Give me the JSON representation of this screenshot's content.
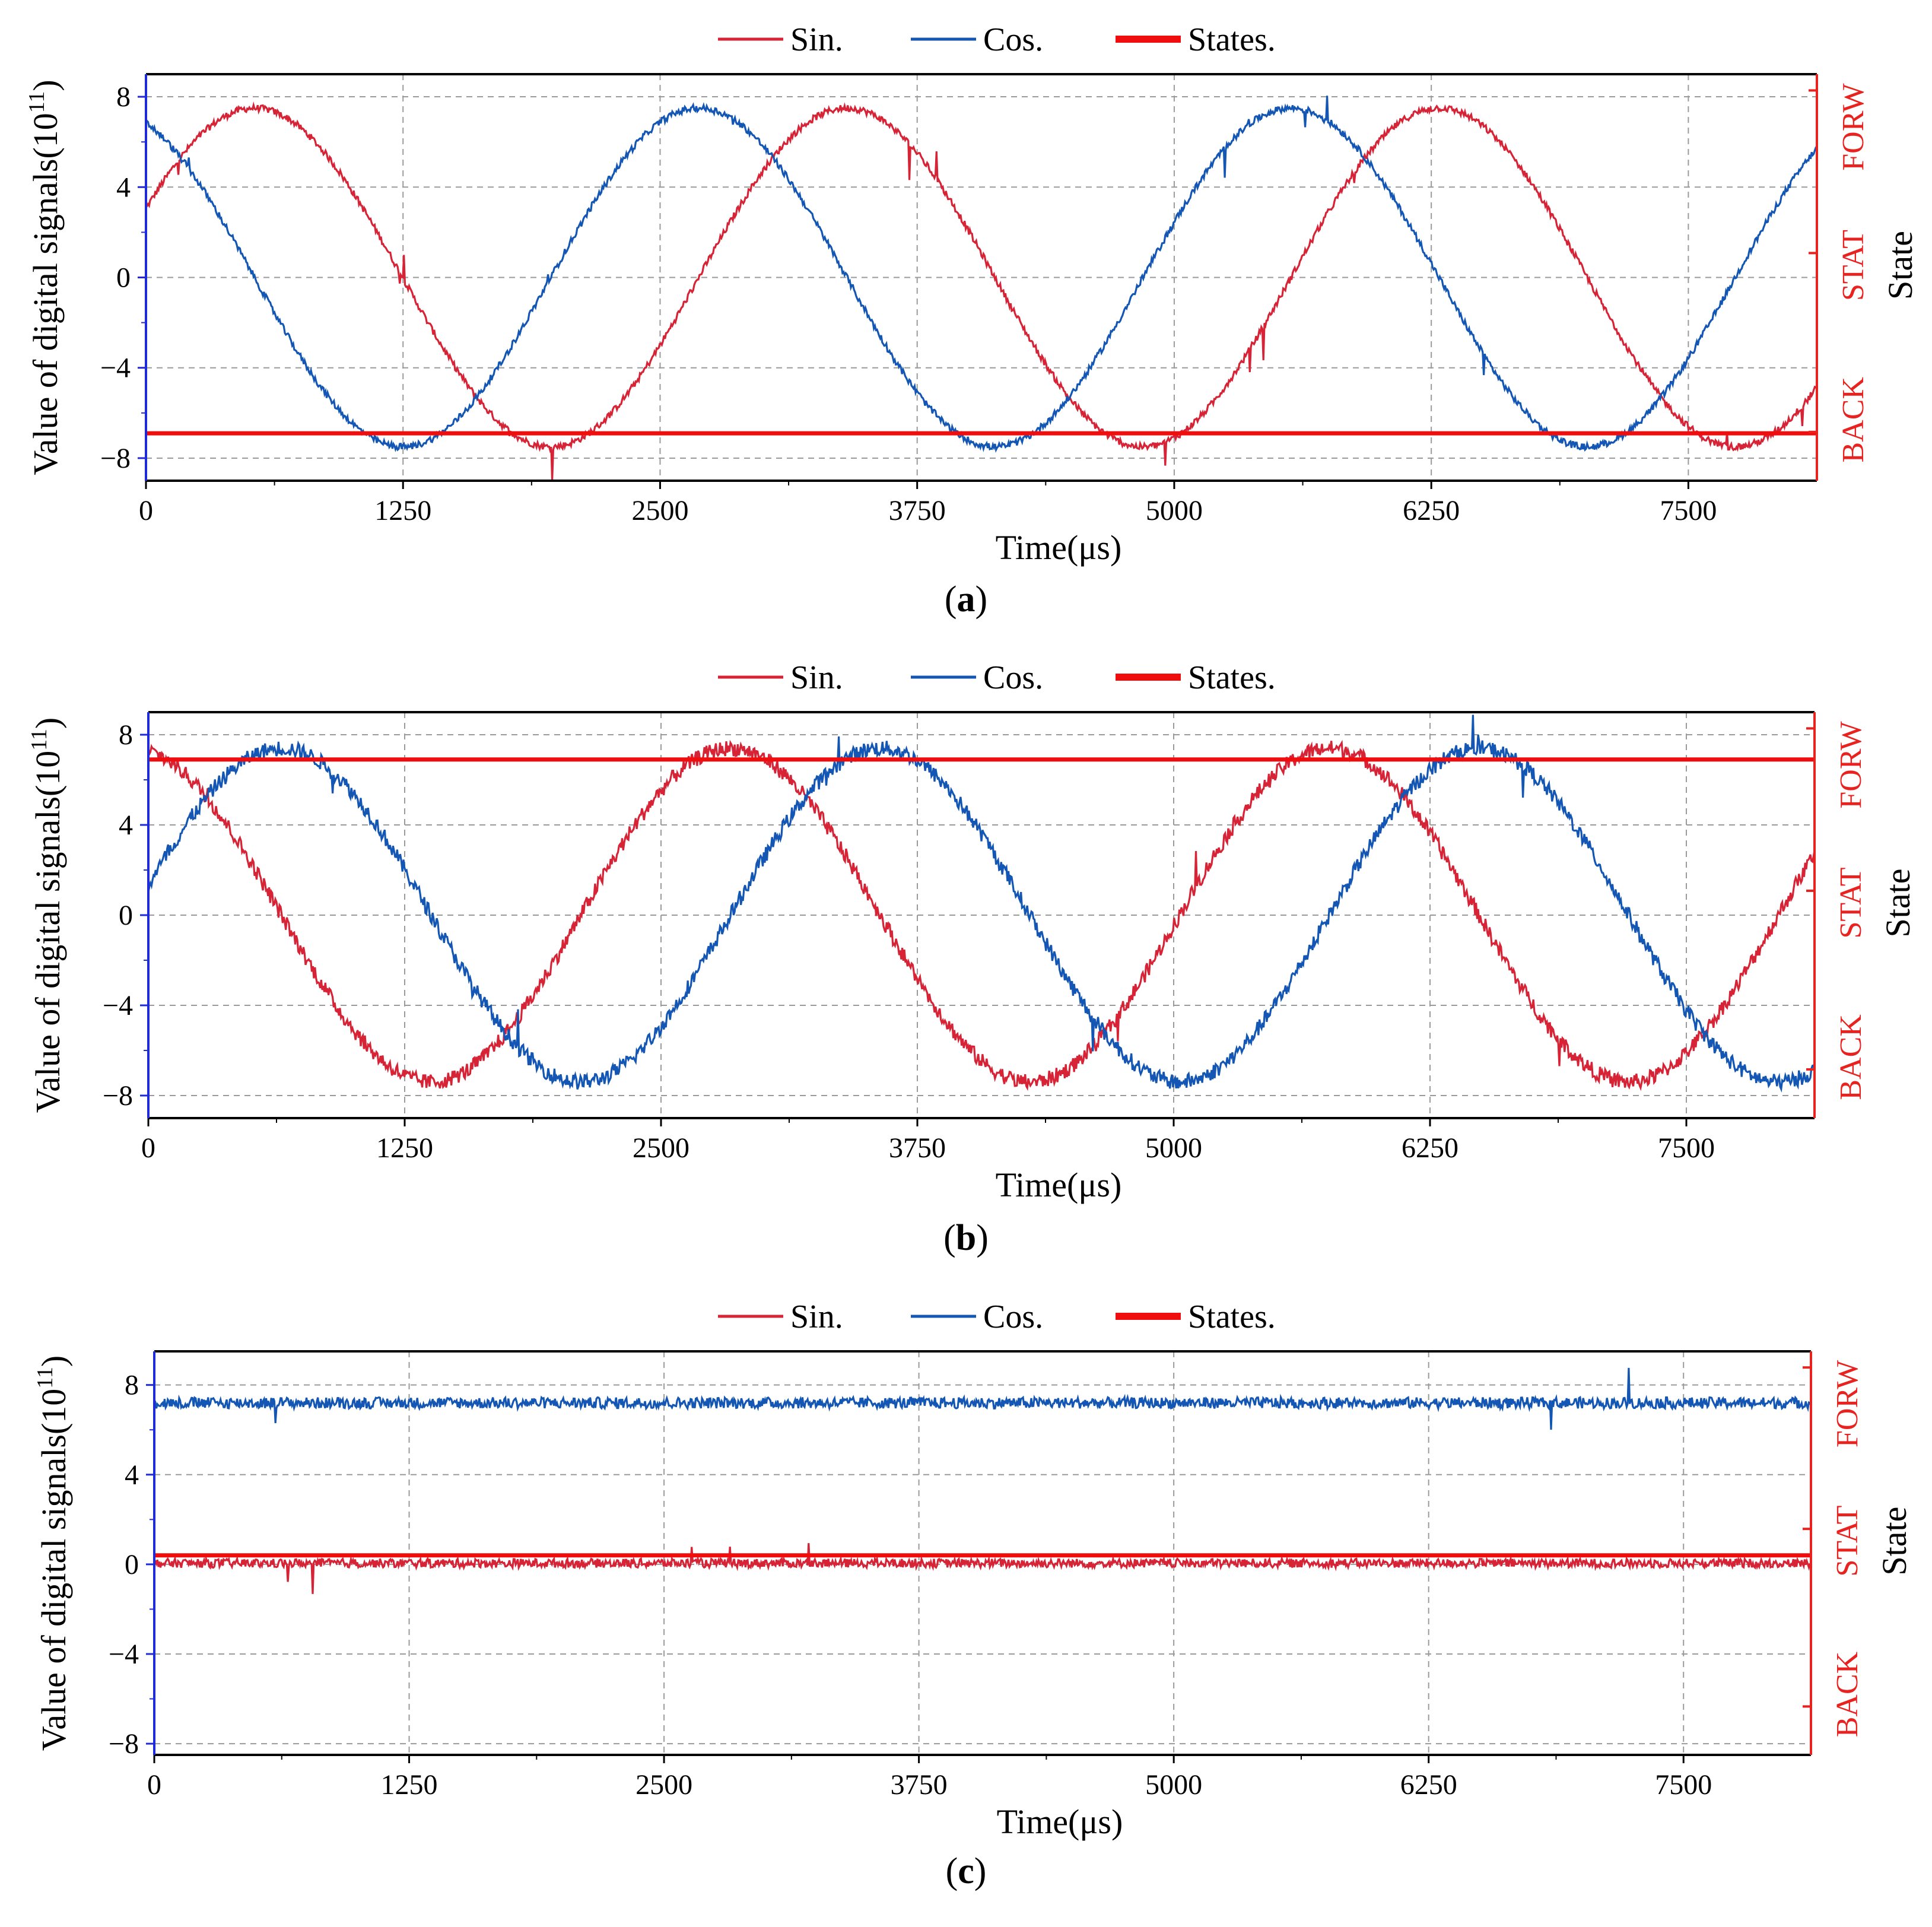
{
  "colors": {
    "sin": "#d62336",
    "cos": "#1456b3",
    "states": "#f00d0d",
    "left_axis": "#1f2bd8",
    "right_axis": "#e8221f",
    "grid": "#9a9a9a"
  },
  "chart_data": [
    {
      "type": "line",
      "panel_label": "(a)",
      "panel_letter": "a",
      "legend": [
        "Sin.",
        "Cos.",
        "States."
      ],
      "xlabel": "Time(μs)",
      "ylabel": "Value of digital signals(10",
      "ylabel_exp": "11",
      "ylabel_close": ")",
      "right_label": "State",
      "x_ticks": [
        "0",
        "1250",
        "2500",
        "3750",
        "5000",
        "6250",
        "7500"
      ],
      "y_ticks": [
        "8",
        "4",
        "0",
        "−4",
        "−8"
      ],
      "state_ticks": [
        "FORW",
        "STAT",
        "BACK"
      ],
      "xlim": [
        0,
        8125
      ],
      "ylim": [
        -9,
        9
      ],
      "series": [
        {
          "name": "Sin.",
          "kind": "sine",
          "amplitude": 7.5,
          "period": 2880,
          "phase_deg": 24,
          "noise": 0.15
        },
        {
          "name": "Cos.",
          "kind": "sine",
          "amplitude": 7.5,
          "period": 2880,
          "phase_deg": 114,
          "noise": 0.15
        },
        {
          "name": "States.",
          "kind": "state",
          "value": -6.9
        }
      ]
    },
    {
      "type": "line",
      "panel_label": "(b)",
      "panel_letter": "b",
      "legend": [
        "Sin.",
        "Cos.",
        "States."
      ],
      "xlabel": "Time(μs)",
      "ylabel": "Value of digital signals(10",
      "ylabel_exp": "11",
      "ylabel_close": ")",
      "right_label": "State",
      "x_ticks": [
        "0",
        "1250",
        "2500",
        "3750",
        "5000",
        "6250",
        "7500"
      ],
      "y_ticks": [
        "8",
        "4",
        "0",
        "−4",
        "−8"
      ],
      "state_ticks": [
        "FORW",
        "STAT",
        "BACK"
      ],
      "xlim": [
        0,
        8125
      ],
      "ylim": [
        -9,
        9
      ],
      "series": [
        {
          "name": "Sin.",
          "kind": "sine",
          "amplitude": 7.4,
          "period": 2920,
          "phase_deg": 100,
          "noise": 0.35
        },
        {
          "name": "Cos.",
          "kind": "sine",
          "amplitude": 7.4,
          "period": 2920,
          "phase_deg": 10,
          "noise": 0.35
        },
        {
          "name": "States.",
          "kind": "state",
          "value": 6.9
        }
      ]
    },
    {
      "type": "line",
      "panel_label": "(c)",
      "panel_letter": "c",
      "legend": [
        "Sin.",
        "Cos.",
        "States."
      ],
      "xlabel": "Time(μs)",
      "ylabel": "Value of digital signals(10",
      "ylabel_exp": "11",
      "ylabel_close": ")",
      "right_label": "State",
      "x_ticks": [
        "0",
        "1250",
        "2500",
        "3750",
        "5000",
        "6250",
        "7500"
      ],
      "y_ticks": [
        "8",
        "4",
        "0",
        "−4",
        "−8"
      ],
      "state_ticks": [
        "FORW",
        "STAT",
        "BACK"
      ],
      "xlim": [
        0,
        8125
      ],
      "ylim": [
        -8.5,
        9.5
      ],
      "series": [
        {
          "name": "Sin.",
          "kind": "flat",
          "value": 0.05,
          "noise": 0.2
        },
        {
          "name": "Cos.",
          "kind": "flat",
          "value": 7.2,
          "noise": 0.25
        },
        {
          "name": "States.",
          "kind": "state",
          "value": 0.4
        }
      ]
    }
  ]
}
